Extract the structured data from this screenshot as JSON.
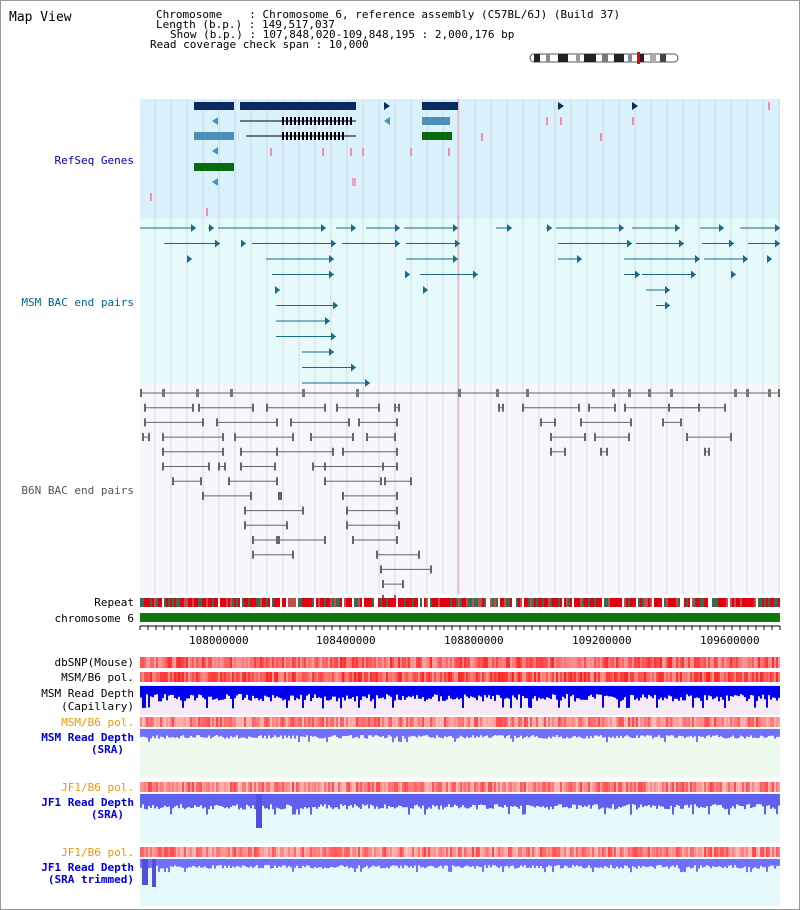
{
  "title": "Map View",
  "info": {
    "chromosome_key": "Chromosome",
    "chromosome_val": "Chromosome 6, reference assembly (C57BL/6J) (Build 37)",
    "length_key": "Length (b.p.)",
    "length_val": "149,517,037",
    "show_key": "Show (b.p.)",
    "show_val": "107,848,020-109,848,195 : 2,000,176 bp",
    "coverage_key": "Read coverage check span",
    "coverage_val": "10,000"
  },
  "tracks": {
    "refseq": "RefSeq Genes",
    "msm_bac": "MSM BAC end pairs",
    "b6n_bac": "B6N BAC end pairs",
    "repeat": "Repeat",
    "chromosome": "chromosome 6",
    "dbsnp": "dbSNP(Mouse)",
    "msm_b6_pol": "MSM/B6 pol.",
    "msm_read_depth_cap_1": "MSM Read Depth",
    "msm_read_depth_cap_2": "(Capillary)",
    "msm_b6_pol_2": "MSM/B6 pol.",
    "msm_read_depth_sra_1": "MSM Read Depth",
    "msm_read_depth_sra_2": "(SRA)",
    "jf1_b6_pol": "JF1/B6 pol.",
    "jf1_read_depth_sra_1": "JF1 Read Depth",
    "jf1_read_depth_sra_2": "(SRA)",
    "jf1_b6_pol_2": "JF1/B6 pol.",
    "jf1_read_depth_trim_1": "JF1 Read Depth",
    "jf1_read_depth_trim_2": "(SRA trimmed)"
  },
  "axis": {
    "ticks": [
      "108000000",
      "108400000",
      "108800000",
      "109200000",
      "109600000"
    ]
  },
  "colors": {
    "refseq_label": "#0000aa",
    "msm_label": "#006688",
    "b6n_label": "#555555",
    "orange_label": "#ee9900",
    "blue_label": "#0000cc",
    "refseq_bg": "#d8f1fa",
    "msm_bg": "#e6fafb",
    "b6n_bg": "#f6f7fb",
    "gene_dark": "#0a2a60",
    "gene_mid": "#4a90b8",
    "gene_green": "#0a6a10",
    "msm_line": "#1a6a88",
    "b6n_line": "#666666",
    "chromosome_green": "#0a7a0a",
    "depth_blue": "#0000ee",
    "depth_mid": "#6666ff"
  }
}
